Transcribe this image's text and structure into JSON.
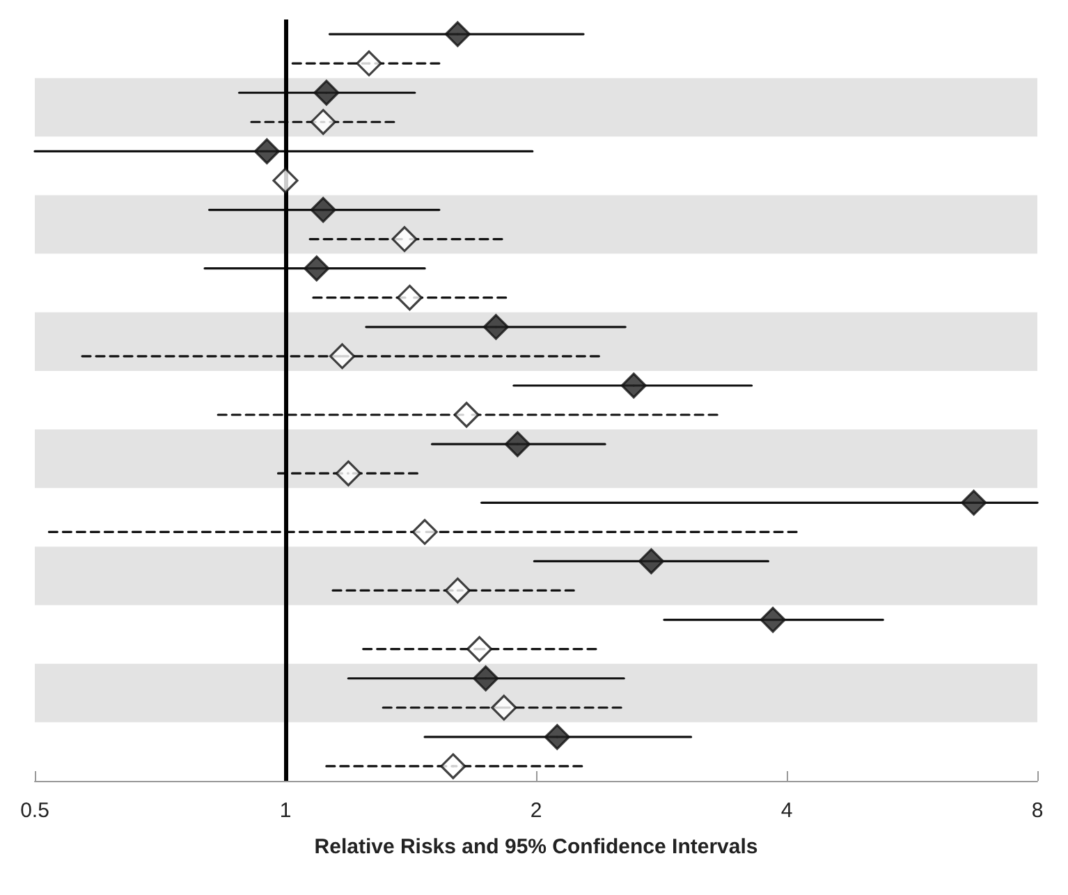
{
  "chart_data": {
    "type": "scatter",
    "orientation": "horizontal",
    "log": "x",
    "xlabel": "Relative Risks and 95% Confidence Intervals",
    "categories": [
      null,
      null,
      null,
      null,
      null,
      null,
      null,
      null,
      null,
      null,
      null,
      null,
      null
    ],
    "xlim": [
      0.5,
      8
    ],
    "xticks": [
      0.5,
      1,
      2,
      4,
      8
    ],
    "tick_labels": "x",
    "ref_lines": [
      {
        "axis": "x",
        "value": 1,
        "color": "#000000"
      }
    ],
    "series": [
      {
        "color": "#222222",
        "marker": "diamond",
        "line_style": "solid",
        "values": [
          1.61,
          1.12,
          0.95,
          1.11,
          1.09,
          1.79,
          2.62,
          1.9,
          6.71,
          2.75,
          3.85,
          1.74,
          2.12
        ],
        "errors": [
          [
            1.13,
            2.28
          ],
          [
            0.88,
            1.43
          ],
          [
            0.5,
            1.98
          ],
          [
            0.81,
            1.53
          ],
          [
            0.8,
            1.47
          ],
          [
            1.25,
            2.56
          ],
          [
            1.88,
            3.63
          ],
          [
            1.5,
            2.42
          ],
          [
            1.72,
            8.0
          ],
          [
            1.99,
            3.8
          ],
          [
            2.85,
            5.22
          ],
          [
            1.19,
            2.55
          ],
          [
            1.47,
            3.07
          ]
        ]
      },
      {
        "color": "#ffffff",
        "marker": "diamond",
        "line_style": "dashed",
        "values": [
          1.26,
          1.11,
          1.0,
          1.39,
          1.41,
          1.17,
          1.65,
          1.19,
          1.47,
          1.61,
          1.71,
          1.83,
          1.59
        ],
        "errors": [
          [
            1.02,
            1.53
          ],
          [
            0.91,
            1.35
          ],
          null,
          [
            1.07,
            1.82
          ],
          [
            1.08,
            1.84
          ],
          [
            0.57,
            2.38
          ],
          [
            0.83,
            3.3
          ],
          [
            0.98,
            1.44
          ],
          [
            0.52,
            4.11
          ],
          [
            1.14,
            2.22
          ],
          [
            1.24,
            2.36
          ],
          [
            1.31,
            2.53
          ],
          [
            1.12,
            2.27
          ]
        ]
      }
    ]
  }
}
